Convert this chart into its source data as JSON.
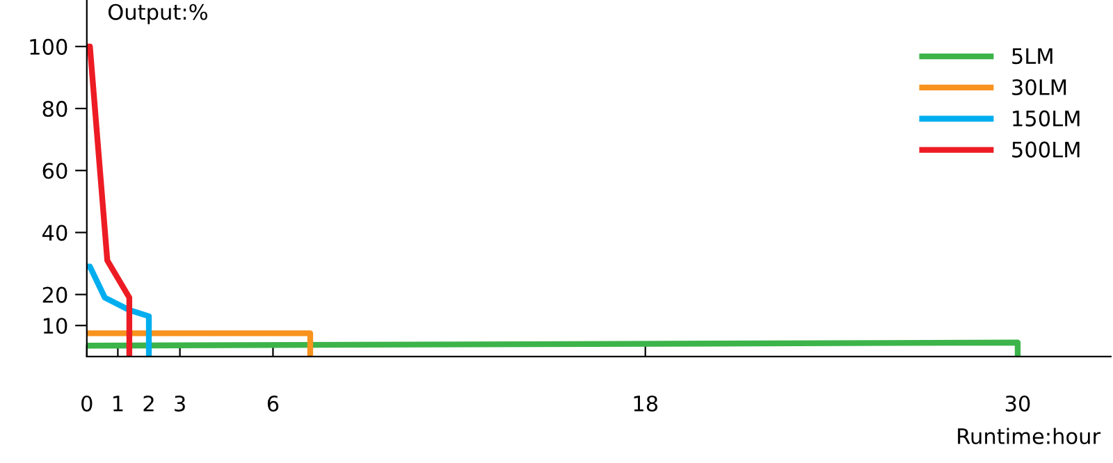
{
  "chart_data": {
    "type": "line",
    "xlabel": "Runtime:hour",
    "ylabel": "Output:%",
    "xlim": [
      0,
      33
    ],
    "xticks": [
      0,
      1,
      2,
      3,
      6,
      18,
      30
    ],
    "ylim": [
      0,
      115
    ],
    "yticks": [
      10,
      20,
      40,
      60,
      80,
      100
    ],
    "grid": false,
    "legend": "top right",
    "marker": "none",
    "line_style": "solid",
    "series": [
      {
        "name": "5LM",
        "color": "#3cb44a",
        "x": [
          0,
          30,
          30
        ],
        "values": [
          3.5,
          4.5,
          0
        ]
      },
      {
        "name": "30LM",
        "color": "#f7931e",
        "x": [
          0,
          7.2,
          7.2
        ],
        "values": [
          7.5,
          7.5,
          0
        ]
      },
      {
        "name": "150LM",
        "color": "#00aeef",
        "x": [
          0,
          0.1,
          0.58,
          1.37,
          2,
          2
        ],
        "values": [
          29,
          29,
          19,
          15,
          13,
          0
        ]
      },
      {
        "name": "500LM",
        "color": "#ed1c24",
        "x": [
          0,
          0.1,
          0.66,
          1.37,
          1.37
        ],
        "values": [
          100,
          100,
          31,
          19,
          0
        ]
      }
    ]
  }
}
